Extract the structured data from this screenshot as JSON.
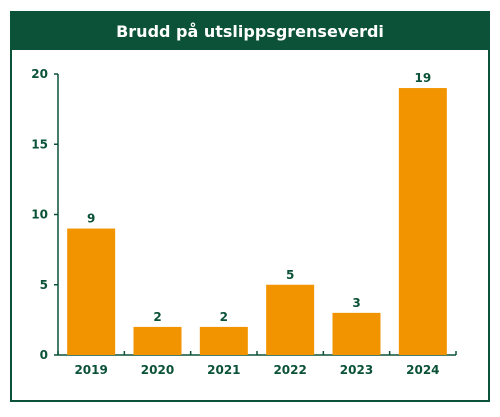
{
  "chart_data": {
    "type": "bar",
    "title": "Brudd på utslippsgrenseverdi",
    "categories": [
      "2019",
      "2020",
      "2021",
      "2022",
      "2023",
      "2024"
    ],
    "values": [
      9,
      2,
      2,
      5,
      3,
      19
    ],
    "ylim": [
      0,
      20
    ],
    "yticks": [
      0,
      5,
      10,
      15,
      20
    ],
    "grid": false,
    "colors": {
      "bar": "#f29400",
      "accent": "#0b5238",
      "text": "#0b5238"
    }
  }
}
